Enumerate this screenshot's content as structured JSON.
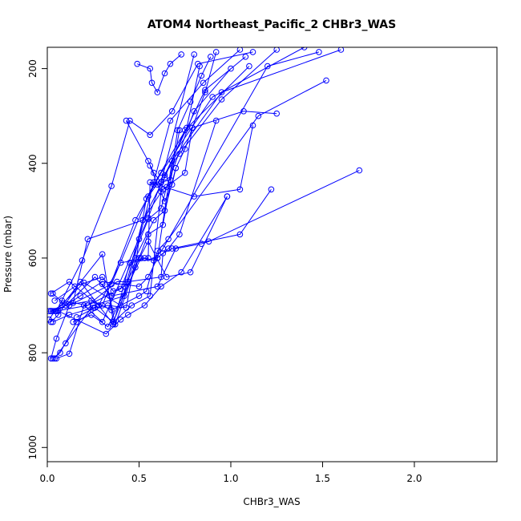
{
  "chart_data": {
    "type": "line",
    "title": "ATOM4 Northeast_Pacific_2 CHBr3_WAS",
    "xlabel": "CHBr3_WAS",
    "ylabel": "Pressure (mbar)",
    "xlim": [
      0,
      2.45
    ],
    "ylim": [
      1030,
      155
    ],
    "y_reversed": true,
    "x_ticks": [
      0.0,
      0.5,
      1.0,
      1.5,
      2.0
    ],
    "x_tick_labels": [
      "0.0",
      "0.5",
      "1.0",
      "1.5",
      "2.0"
    ],
    "y_ticks": [
      200,
      400,
      600,
      800,
      1000
    ],
    "y_tick_labels": [
      "200",
      "400",
      "600",
      "800",
      "1000"
    ],
    "grid": false,
    "colors": {
      "series": "#0000ff",
      "axes": "#000000"
    },
    "series": [
      {
        "x": [
          0.02,
          0.05,
          0.12,
          0.35,
          0.55,
          0.72,
          0.95,
          1.25
        ],
        "y": [
          812,
          770,
          700,
          655,
          470,
          380,
          265,
          160
        ]
      },
      {
        "x": [
          0.03,
          0.07,
          0.16,
          0.3,
          0.48,
          0.62,
          0.9,
          1.4
        ],
        "y": [
          812,
          800,
          735,
          700,
          520,
          420,
          260,
          155
        ]
      },
      {
        "x": [
          0.04,
          0.1,
          0.25,
          0.42,
          0.58,
          0.67,
          0.85,
          1.05
        ],
        "y": [
          812,
          780,
          700,
          680,
          440,
          310,
          230,
          160
        ]
      },
      {
        "x": [
          0.05,
          0.12,
          0.2,
          0.3,
          0.55,
          0.62,
          0.8
        ],
        "y": [
          812,
          802,
          700,
          735,
          515,
          440,
          170
        ]
      },
      {
        "x": [
          0.02,
          0.06,
          0.18,
          0.36,
          0.45,
          0.6,
          0.68,
          0.95,
          1.6
        ],
        "y": [
          735,
          720,
          650,
          740,
          610,
          600,
          395,
          250,
          160
        ]
      },
      {
        "x": [
          0.01,
          0.04,
          0.2,
          0.4,
          0.52,
          0.64,
          0.75,
          1.1
        ],
        "y": [
          730,
          712,
          652,
          700,
          520,
          430,
          330,
          195
        ]
      },
      {
        "x": [
          0.02,
          0.08,
          0.3,
          0.36,
          0.5,
          0.55,
          0.63,
          0.72
        ],
        "y": [
          712,
          700,
          592,
          735,
          600,
          550,
          530,
          330
        ]
      },
      {
        "x": [
          0.03,
          0.05,
          0.22,
          0.4,
          0.55,
          0.62,
          0.65,
          0.8,
          1.0
        ],
        "y": [
          712,
          712,
          700,
          665,
          518,
          495,
          450,
          290,
          200
        ]
      },
      {
        "x": [
          0.02,
          0.14,
          0.22,
          0.52,
          0.63,
          0.75,
          0.79,
          1.07,
          1.25
        ],
        "y": [
          712,
          695,
          560,
          520,
          455,
          420,
          325,
          290,
          295
        ]
      },
      {
        "x": [
          0.01,
          0.05,
          0.19,
          0.35,
          0.45,
          0.56,
          0.68,
          0.82,
          1.12
        ],
        "y": [
          712,
          712,
          605,
          448,
          310,
          340,
          290,
          190,
          165
        ]
      },
      {
        "x": [
          0.02,
          0.06,
          0.32,
          0.4,
          0.44,
          0.53,
          0.62,
          0.73,
          0.98
        ],
        "y": [
          712,
          712,
          760,
          730,
          720,
          700,
          660,
          630,
          470
        ]
      },
      {
        "x": [
          0.03,
          0.12,
          0.25,
          0.33,
          0.43,
          0.48,
          0.58,
          0.64,
          0.7
        ],
        "y": [
          735,
          720,
          705,
          700,
          705,
          600,
          520,
          500,
          410
        ]
      },
      {
        "x": [
          0.02,
          0.12,
          0.28,
          0.4,
          0.55,
          0.56,
          0.8,
          1.05,
          1.12
        ],
        "y": [
          675,
          650,
          700,
          610,
          600,
          440,
          470,
          455,
          320
        ]
      },
      {
        "x": [
          0.03,
          0.1,
          0.26,
          0.35,
          0.6,
          0.7,
          0.84,
          0.88,
          1.7
        ],
        "y": [
          675,
          700,
          640,
          680,
          660,
          580,
          570,
          565,
          415
        ]
      },
      {
        "x": [
          0.04,
          0.15,
          0.3,
          0.36,
          0.42,
          0.55,
          0.65,
          0.78,
          0.98
        ],
        "y": [
          690,
          660,
          640,
          670,
          660,
          565,
          640,
          630,
          470
        ]
      },
      {
        "x": [
          0.05,
          0.18,
          0.3,
          0.5,
          0.55,
          0.6,
          0.66,
          0.72,
          0.92
        ],
        "y": [
          712,
          680,
          650,
          660,
          640,
          600,
          580,
          550,
          310
        ]
      },
      {
        "x": [
          0.08,
          0.22,
          0.38,
          0.44,
          0.62,
          0.63,
          0.68,
          1.05,
          1.22
        ],
        "y": [
          690,
          700,
          650,
          650,
          640,
          590,
          580,
          550,
          455
        ]
      },
      {
        "x": [
          0.1,
          0.24,
          0.35,
          0.5,
          0.54,
          0.6,
          0.66,
          1.15,
          1.52
        ],
        "y": [
          700,
          690,
          710,
          680,
          670,
          585,
          560,
          300,
          225
        ]
      },
      {
        "x": [
          0.14,
          0.24,
          0.33,
          0.51,
          0.53,
          0.58,
          0.63,
          1.2,
          1.48
        ],
        "y": [
          735,
          720,
          745,
          600,
          600,
          605,
          580,
          195,
          165
        ]
      },
      {
        "x": [
          0.16,
          0.26,
          0.36,
          0.46,
          0.56,
          0.62,
          0.64,
          0.86,
          1.08
        ],
        "y": [
          725,
          705,
          735,
          700,
          680,
          460,
          425,
          245,
          175
        ]
      },
      {
        "x": [
          0.3,
          0.34,
          0.37,
          0.48,
          0.5,
          0.54,
          0.58,
          0.76,
          0.83
        ],
        "y": [
          655,
          680,
          740,
          620,
          560,
          475,
          445,
          325,
          195
        ]
      },
      {
        "x": [
          0.56,
          0.6,
          0.64,
          0.68,
          0.7,
          0.75,
          0.79,
          0.86,
          0.92
        ],
        "y": [
          405,
          445,
          480,
          445,
          410,
          370,
          325,
          250,
          165
        ]
      },
      {
        "x": [
          0.43,
          0.55,
          0.58,
          0.62,
          0.67,
          0.71,
          0.78,
          0.84,
          0.89
        ],
        "y": [
          310,
          395,
          420,
          440,
          435,
          330,
          270,
          215,
          175
        ]
      },
      {
        "x": [
          0.49,
          0.56,
          0.57,
          0.6,
          0.64,
          0.67,
          0.73
        ],
        "y": [
          190,
          200,
          230,
          250,
          210,
          190,
          170
        ]
      }
    ]
  }
}
